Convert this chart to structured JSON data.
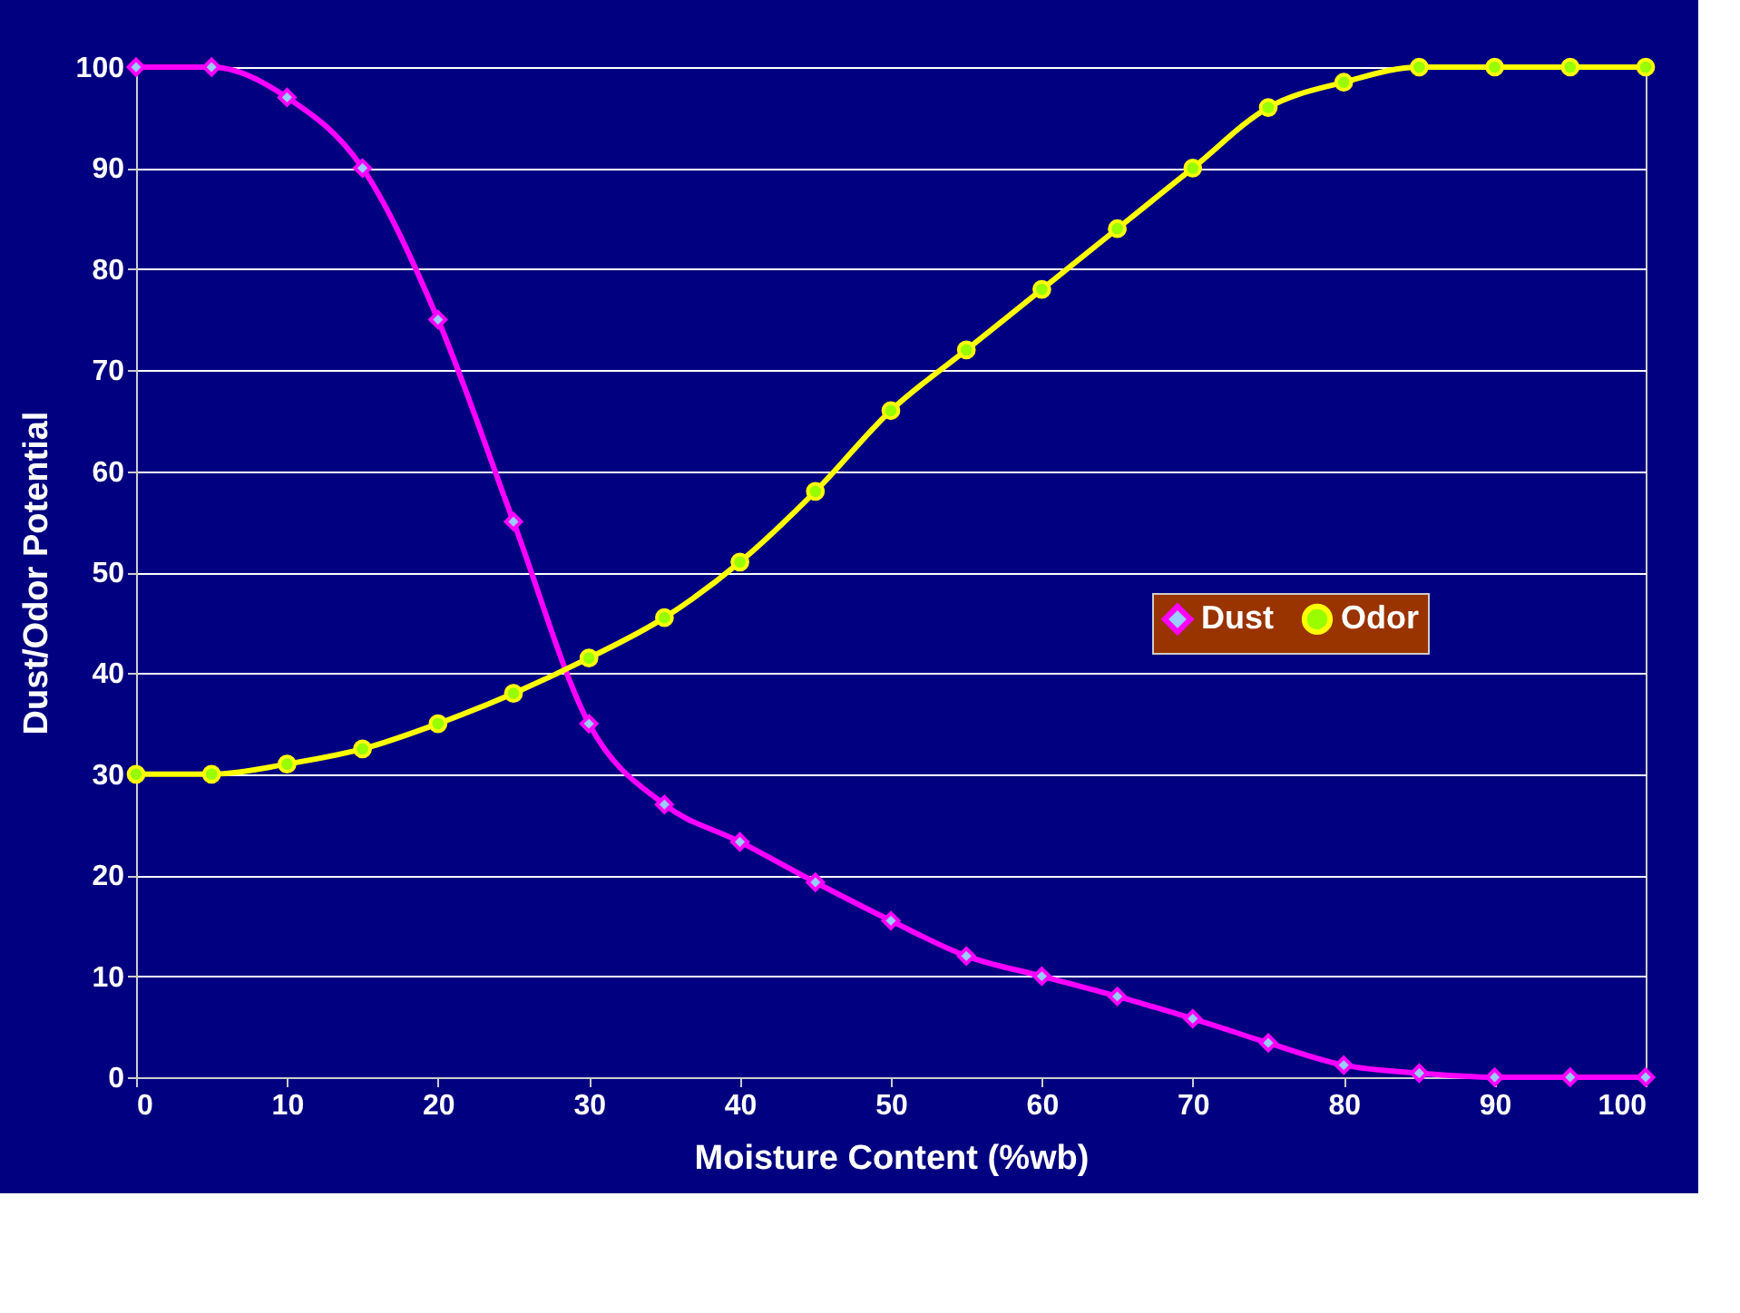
{
  "chart_data": {
    "type": "line",
    "xlabel": "Moisture Content (%wb)",
    "ylabel": "Dust/Odor Potential",
    "x": [
      0,
      5,
      10,
      15,
      20,
      25,
      30,
      35,
      40,
      45,
      50,
      55,
      60,
      65,
      70,
      75,
      80,
      85,
      90,
      95,
      100
    ],
    "series": [
      {
        "name": "Dust",
        "color": "#ff00ff",
        "marker": "diamond",
        "values": [
          100,
          100,
          97,
          90,
          75,
          55,
          35,
          27,
          23.3,
          19.3,
          15.5,
          12,
          10,
          8,
          5.8,
          3.4,
          1.2,
          0.4,
          0,
          0,
          0
        ]
      },
      {
        "name": "Odor",
        "color": "#ffff00",
        "marker": "circle",
        "values": [
          30,
          30,
          31,
          32.5,
          35,
          38,
          41.5,
          45.5,
          51,
          58,
          66,
          72,
          78,
          84,
          90,
          96,
          98.5,
          100,
          100,
          100,
          100
        ]
      }
    ],
    "xlim": [
      0,
      100
    ],
    "xticks": [
      0,
      10,
      20,
      30,
      40,
      50,
      60,
      70,
      80,
      90,
      100
    ],
    "ylim": [
      0,
      100
    ],
    "yticks": [
      0,
      10,
      20,
      30,
      40,
      50,
      60,
      70,
      80,
      90,
      100
    ],
    "grid": "y",
    "legend": "right",
    "line_style": "solid"
  }
}
